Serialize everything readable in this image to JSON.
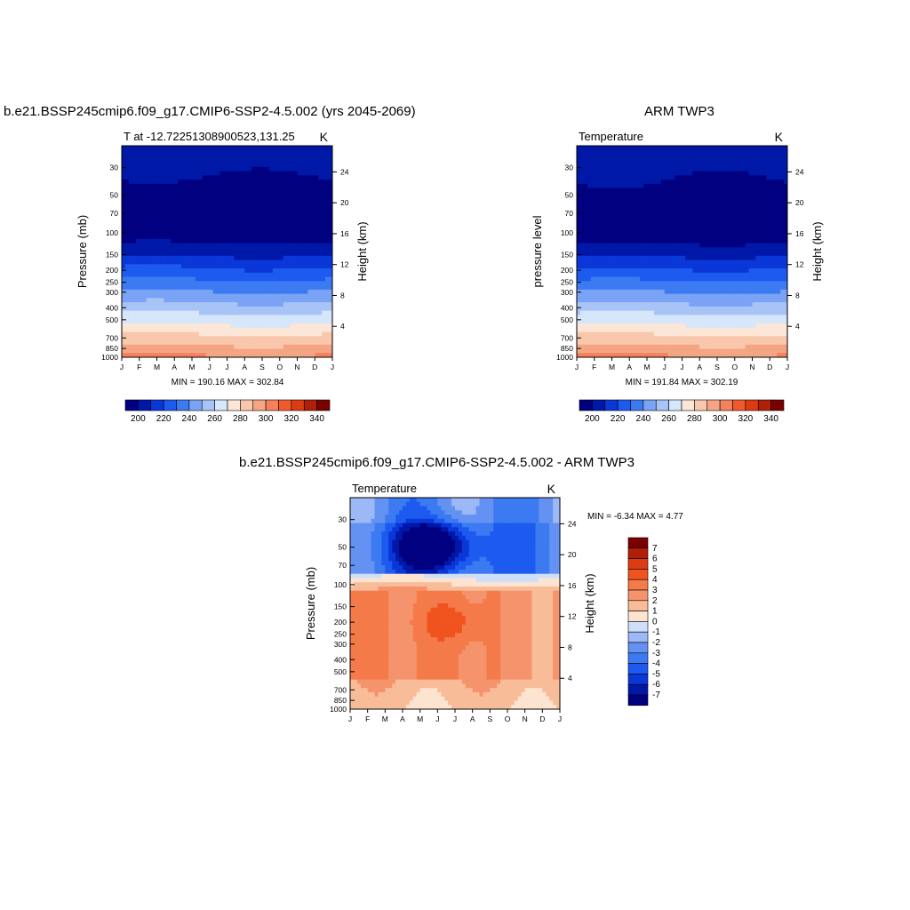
{
  "colors": {
    "abs_palette": [
      "#000080",
      "#0018a8",
      "#0a37d8",
      "#1c5af0",
      "#3c7af2",
      "#7aa2f5",
      "#a8c4f7",
      "#d6e6fb",
      "#fbe6d8",
      "#f9c8ac",
      "#f6a584",
      "#f5805c",
      "#f25a2e",
      "#dd3c13",
      "#b02008",
      "#7b0000"
    ],
    "diff_palette": [
      "#000080",
      "#0018a8",
      "#0a37d8",
      "#1c5af0",
      "#3c7af2",
      "#6492f3",
      "#9db8f6",
      "#cfdff9",
      "#fde4d1",
      "#f9bc98",
      "#f5946c",
      "#f47a4a",
      "#f1531f",
      "#dd3c13",
      "#b02008",
      "#7b0000"
    ]
  },
  "chart_data": [
    {
      "id": "model",
      "type": "contour",
      "title": "b.e21.BSSP245cmip6.f09_g17.CMIP6-SSP2-4.5.002 (yrs 2045-2069)",
      "subtitle_left": "T at -12.72251308900523,131.25",
      "subtitle_right": "K",
      "ylabel": "Pressure (mb)",
      "ylabel_right": "Height (km)",
      "x_ticks": [
        "J",
        "F",
        "M",
        "A",
        "M",
        "J",
        "J",
        "A",
        "S",
        "O",
        "N",
        "D",
        "J"
      ],
      "y_ticks": [
        30,
        50,
        70,
        100,
        150,
        200,
        250,
        300,
        400,
        500,
        700,
        850,
        1000
      ],
      "y_range": [
        20,
        1000
      ],
      "height_ticks": [
        4,
        8,
        12,
        16,
        20,
        24
      ],
      "min_max": "MIN = 190.16 MAX = 302.84",
      "levels": [
        190,
        200,
        210,
        220,
        230,
        240,
        250,
        260,
        270,
        280,
        290,
        300,
        310,
        320,
        330,
        340
      ],
      "colorbar_labels": [
        200,
        220,
        240,
        260,
        280,
        300,
        320,
        340
      ]
    },
    {
      "id": "obs",
      "type": "contour",
      "title": "ARM TWP3",
      "subtitle_left": "Temperature",
      "subtitle_right": "K",
      "ylabel": "pressure level",
      "ylabel_right": "Height (km)",
      "x_ticks": [
        "J",
        "F",
        "M",
        "A",
        "M",
        "J",
        "J",
        "A",
        "S",
        "O",
        "N",
        "D",
        "J"
      ],
      "y_ticks": [
        30,
        50,
        70,
        100,
        150,
        200,
        250,
        300,
        400,
        500,
        700,
        850,
        1000
      ],
      "y_range": [
        20,
        1000
      ],
      "height_ticks": [
        4,
        8,
        12,
        16,
        20,
        24
      ],
      "min_max": "MIN = 191.84 MAX = 302.19",
      "levels": [
        190,
        200,
        210,
        220,
        230,
        240,
        250,
        260,
        270,
        280,
        290,
        300,
        310,
        320,
        330,
        340
      ],
      "colorbar_labels": [
        200,
        220,
        240,
        260,
        280,
        300,
        320,
        340
      ]
    },
    {
      "id": "diff",
      "type": "contour",
      "title": "b.e21.BSSP245cmip6.f09_g17.CMIP6-SSP2-4.5.002 - ARM TWP3",
      "subtitle_left": "Temperature",
      "subtitle_right": "K",
      "ylabel": "Pressure (mb)",
      "ylabel_right": "Height (km)",
      "x_ticks": [
        "J",
        "F",
        "M",
        "A",
        "M",
        "J",
        "J",
        "A",
        "S",
        "O",
        "N",
        "D",
        "J"
      ],
      "y_ticks": [
        30,
        50,
        70,
        100,
        150,
        200,
        250,
        300,
        400,
        500,
        700,
        850,
        1000
      ],
      "y_range": [
        20,
        1000
      ],
      "height_ticks": [
        4,
        8,
        12,
        16,
        20,
        24
      ],
      "min_max": "MIN =  -6.34 MAX =   4.77",
      "levels": [
        -8,
        -7,
        -6,
        -5,
        -4,
        -3,
        -2,
        -1,
        0,
        1,
        2,
        3,
        4,
        5,
        6,
        7,
        8
      ],
      "colorbar_labels": [
        7,
        6,
        5,
        4,
        3,
        2,
        1,
        0,
        -1,
        -2,
        -3,
        -4,
        -5,
        -6,
        -7
      ]
    }
  ]
}
